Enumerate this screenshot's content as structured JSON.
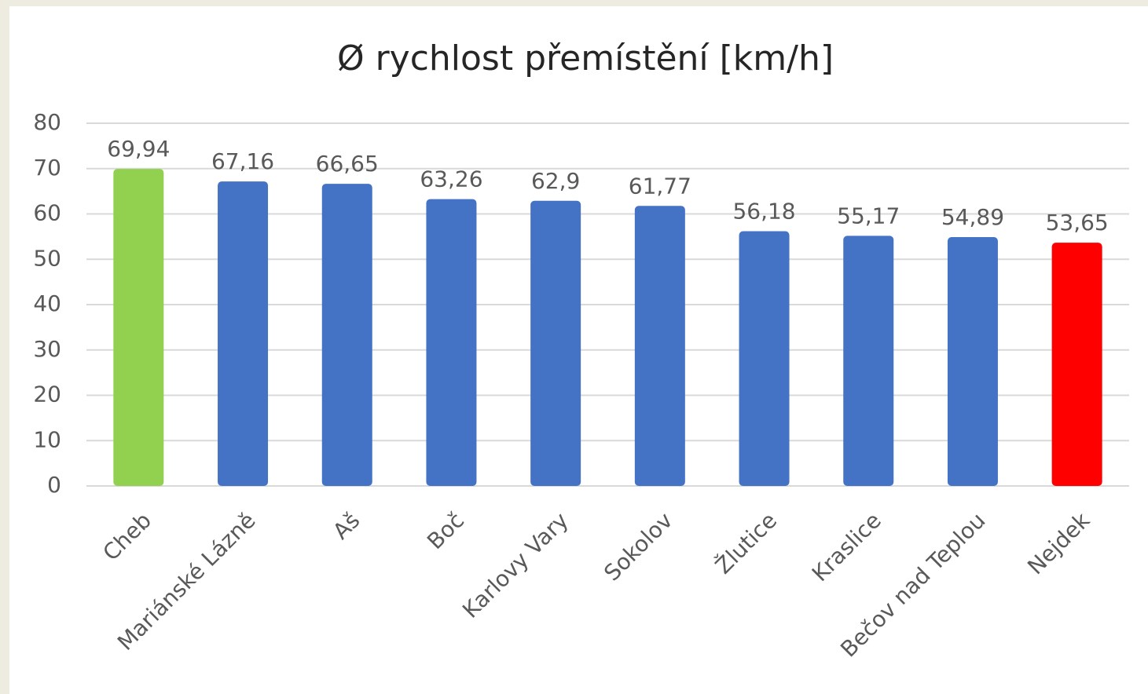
{
  "chart_data": {
    "type": "bar",
    "title": "Ø rychlost přemístění [km/h]",
    "categories": [
      "Cheb",
      "Mariánské Lázně",
      "Aš",
      "Boč",
      "Karlovy Vary",
      "Sokolov",
      "Žlutice",
      "Kraslice",
      "Bečov nad Teplou",
      "Nejdek"
    ],
    "values": [
      69.94,
      67.16,
      66.65,
      63.26,
      62.9,
      61.77,
      56.18,
      55.17,
      54.89,
      53.65
    ],
    "value_labels": [
      "69,94",
      "67,16",
      "66,65",
      "63,26",
      "62,9",
      "61,77",
      "56,18",
      "55,17",
      "54,89",
      "53,65"
    ],
    "colors": [
      "#92d050",
      "#4472c4",
      "#4472c4",
      "#4472c4",
      "#4472c4",
      "#4472c4",
      "#4472c4",
      "#4472c4",
      "#4472c4",
      "#ff0000"
    ],
    "ylim": [
      0,
      80
    ],
    "yticks": [
      0,
      10,
      20,
      30,
      40,
      50,
      60,
      70,
      80
    ],
    "grid": true
  }
}
